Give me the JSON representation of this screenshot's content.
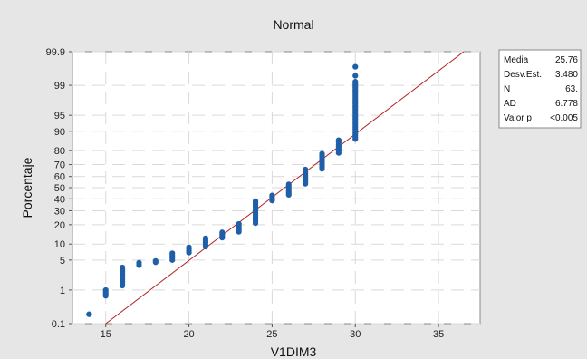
{
  "chart_data": {
    "type": "scatter",
    "subtype": "normal-probability-plot",
    "title": "Normal",
    "xlabel": "V1DIM3",
    "ylabel": "Porcentaje",
    "xlim": [
      13,
      37.5
    ],
    "ylim_percent": [
      0.1,
      99.9
    ],
    "x_ticks": [
      15,
      20,
      25,
      30,
      35
    ],
    "y_ticks": [
      0.1,
      1,
      5,
      10,
      20,
      30,
      40,
      50,
      60,
      70,
      80,
      90,
      95,
      99,
      99.9
    ],
    "y_scale": "normal-probability",
    "grid": true,
    "fit_line": {
      "mean": 25.76,
      "sd": 3.48,
      "color": "#b22222"
    },
    "point_color": "#1f5fa8",
    "groups": [
      {
        "x": 14,
        "p_low": 0.2,
        "p_high": 0.2
      },
      {
        "x": 15,
        "p_low": 0.7,
        "p_high": 1.0
      },
      {
        "x": 16,
        "p_low": 1.3,
        "p_high": 3.5
      },
      {
        "x": 17,
        "p_low": 3.9,
        "p_high": 4.4
      },
      {
        "x": 18,
        "p_low": 4.5,
        "p_high": 4.8
      },
      {
        "x": 19,
        "p_low": 5.0,
        "p_high": 6.8
      },
      {
        "x": 20,
        "p_low": 7.0,
        "p_high": 8.8
      },
      {
        "x": 21,
        "p_low": 9.0,
        "p_high": 12.5
      },
      {
        "x": 22,
        "p_low": 12.8,
        "p_high": 15.5
      },
      {
        "x": 23,
        "p_low": 15.8,
        "p_high": 20.5
      },
      {
        "x": 24,
        "p_low": 21.0,
        "p_high": 38.0
      },
      {
        "x": 25,
        "p_low": 38.5,
        "p_high": 43.0
      },
      {
        "x": 26,
        "p_low": 43.5,
        "p_high": 53.0
      },
      {
        "x": 27,
        "p_low": 53.5,
        "p_high": 66.0
      },
      {
        "x": 28,
        "p_low": 66.5,
        "p_high": 78.0
      },
      {
        "x": 29,
        "p_low": 78.5,
        "p_high": 86.0
      },
      {
        "x": 30,
        "p_low": 86.5,
        "p_high": 99.2
      }
    ],
    "outliers": [
      {
        "x": 30,
        "p": 99.45
      },
      {
        "x": 30,
        "p": 99.7
      }
    ]
  },
  "legend": {
    "rows": [
      {
        "label": "Media",
        "value": "25.76"
      },
      {
        "label": "Desv.Est.",
        "value": "3.480"
      },
      {
        "label": "N",
        "value": "63."
      },
      {
        "label": "AD",
        "value": "6.778"
      },
      {
        "label": "Valor p",
        "value": "<0.005"
      }
    ]
  }
}
